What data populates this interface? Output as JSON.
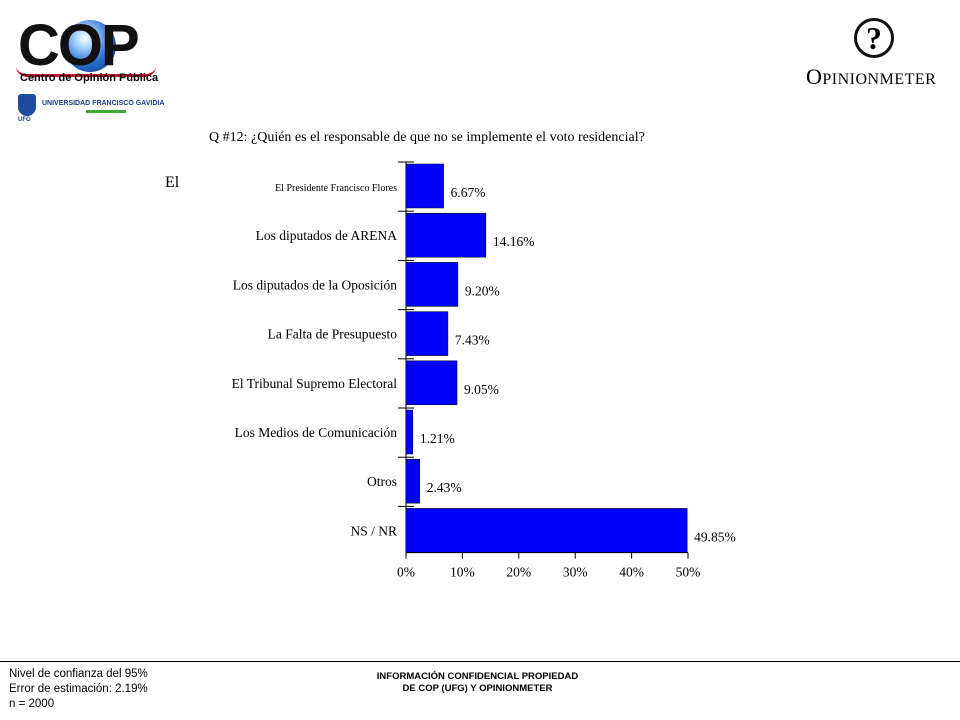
{
  "header": {
    "cop_logo_letters": "COP",
    "cop_logo_subtitle": "Centro de Opinión Pública",
    "ufg_logo_text": "UNIVERSIDAD FRANCISCO GAVIDIA",
    "ufg_logo_small": "UFG",
    "opinionmeter_first": "O",
    "opinionmeter_rest": "PINIONMETER",
    "opinionmeter_mark": "?"
  },
  "stray_text": "El",
  "chart_data": {
    "type": "bar",
    "orientation": "horizontal",
    "title": "Q #12: ¿Quién es el responsable de que no se implemente el voto residencial?",
    "categories": [
      "El Presidente Francisco Flores",
      "Los diputados de ARENA",
      "Los diputados de la Oposición",
      "La Falta de Presupuesto",
      "El Tribunal Supremo Electoral",
      "Los Medios de Comunicación",
      "Otros",
      "NS / NR"
    ],
    "values": [
      6.67,
      14.16,
      9.2,
      7.43,
      9.05,
      1.21,
      2.43,
      49.85
    ],
    "value_labels": [
      "6.67%",
      "14.16%",
      "9.20%",
      "7.43%",
      "9.05%",
      "1.21%",
      "2.43%",
      "49.85%"
    ],
    "xlim": [
      0,
      50
    ],
    "xticks": [
      0,
      10,
      20,
      30,
      40,
      50
    ],
    "xtick_labels": [
      "0%",
      "10%",
      "20%",
      "30%",
      "40%",
      "50%"
    ],
    "bar_color": "#0000ff",
    "grid": false,
    "legend": "none"
  },
  "footer": {
    "confidence": "Nivel de confianza del 95%",
    "error": "Error de estimación: 2.19%",
    "sample": "n = 2000",
    "confidential_line1": "INFORMACIÓN CONFIDENCIAL PROPIEDAD",
    "confidential_line2": "DE COP (UFG) Y OPINIONMETER"
  }
}
